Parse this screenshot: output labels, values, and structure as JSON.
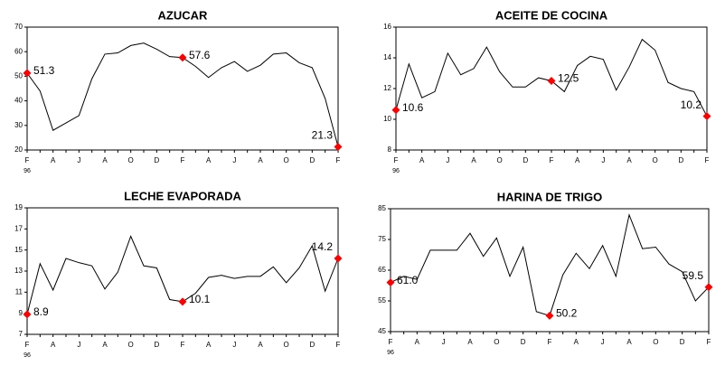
{
  "chart_data": [
    {
      "type": "line",
      "title": "AZUCAR",
      "year": "96",
      "categories": [
        "F",
        null,
        "A",
        null,
        "J",
        null,
        "A",
        null,
        "O",
        null,
        "D",
        null,
        "F",
        null,
        "A",
        null,
        "J",
        null,
        "A",
        null,
        "O",
        null,
        "D",
        null,
        "F"
      ],
      "values": [
        51.3,
        44,
        28,
        31,
        34,
        49,
        59,
        59.5,
        62.5,
        63.5,
        61,
        58,
        57.6,
        54,
        49.5,
        53.5,
        56,
        52,
        54.5,
        59,
        59.5,
        55.5,
        53.5,
        41,
        21.3
      ],
      "value_labels": [
        "51.3",
        null,
        null,
        null,
        null,
        null,
        null,
        null,
        null,
        null,
        null,
        null,
        "57.6",
        null,
        null,
        null,
        null,
        null,
        null,
        null,
        null,
        null,
        null,
        null,
        "21.3"
      ],
      "color": "#000000",
      "marker_color": "#ff0000",
      "ylim": [
        20,
        70
      ],
      "yticks": [
        20,
        30,
        40,
        50,
        60,
        70
      ]
    },
    {
      "type": "line",
      "title": "ACEITE DE COCINA",
      "year": "96",
      "categories": [
        "F",
        null,
        "A",
        null,
        "J",
        null,
        "A",
        null,
        "O",
        null,
        "D",
        null,
        "F",
        null,
        "A",
        null,
        "J",
        null,
        "A",
        null,
        "O",
        null,
        "D",
        null,
        "F"
      ],
      "values": [
        10.6,
        13.6,
        11.4,
        11.8,
        14.3,
        12.9,
        13.3,
        14.7,
        13.1,
        12.1,
        12.1,
        12.7,
        12.5,
        11.8,
        13.5,
        14.1,
        13.9,
        11.9,
        13.4,
        15.2,
        14.5,
        12.4,
        12.0,
        11.8,
        10.2
      ],
      "value_labels": [
        "10.6",
        null,
        null,
        null,
        null,
        null,
        null,
        null,
        null,
        null,
        null,
        null,
        "12.5",
        null,
        null,
        null,
        null,
        null,
        null,
        null,
        null,
        null,
        null,
        null,
        "10.2"
      ],
      "color": "#000000",
      "marker_color": "#ff0000",
      "ylim": [
        8,
        16
      ],
      "yticks": [
        8,
        10,
        12,
        14,
        16
      ]
    },
    {
      "type": "line",
      "title": "LECHE EVAPORADA",
      "year": "96",
      "categories": [
        "F",
        null,
        "A",
        null,
        "J",
        null,
        "A",
        null,
        "O",
        null,
        "D",
        null,
        "F",
        null,
        "A",
        null,
        "J",
        null,
        "A",
        null,
        "O",
        null,
        "D",
        null,
        "F"
      ],
      "values": [
        8.9,
        13.7,
        11.2,
        14.2,
        13.8,
        13.5,
        11.3,
        12.9,
        16.3,
        13.5,
        13.3,
        10.3,
        10.1,
        10.9,
        12.4,
        12.6,
        12.3,
        12.5,
        12.5,
        13.4,
        11.9,
        13.3,
        15.4,
        11.1,
        14.2
      ],
      "value_labels": [
        "8.9",
        null,
        null,
        null,
        null,
        null,
        null,
        null,
        null,
        null,
        null,
        null,
        "10.1",
        null,
        null,
        null,
        null,
        null,
        null,
        null,
        null,
        null,
        null,
        null,
        "14.2"
      ],
      "color": "#000000",
      "marker_color": "#ff0000",
      "ylim": [
        7,
        19
      ],
      "yticks": [
        7,
        9,
        11,
        13,
        15,
        17,
        19
      ]
    },
    {
      "type": "line",
      "title": "HARINA DE TRIGO",
      "year": "96",
      "categories": [
        "F",
        null,
        "A",
        null,
        "J",
        null,
        "A",
        null,
        "O",
        null,
        "D",
        null,
        "F",
        null,
        "A",
        null,
        "J",
        null,
        "A",
        null,
        "O",
        null,
        "D",
        null,
        "F"
      ],
      "values": [
        61.0,
        63,
        62,
        71.5,
        71.5,
        71.5,
        77,
        69.5,
        75.5,
        63,
        72.5,
        51.5,
        50.2,
        63.5,
        70.5,
        65.5,
        73,
        63,
        83,
        72,
        72.5,
        67,
        64.5,
        55,
        59.5
      ],
      "value_labels": [
        "61.0",
        null,
        null,
        null,
        null,
        null,
        null,
        null,
        null,
        null,
        null,
        null,
        "50.2",
        null,
        null,
        null,
        null,
        null,
        null,
        null,
        null,
        null,
        null,
        null,
        "59.5"
      ],
      "color": "#000000",
      "marker_color": "#ff0000",
      "ylim": [
        45,
        85
      ],
      "yticks": [
        45,
        55,
        65,
        75,
        85
      ]
    }
  ]
}
